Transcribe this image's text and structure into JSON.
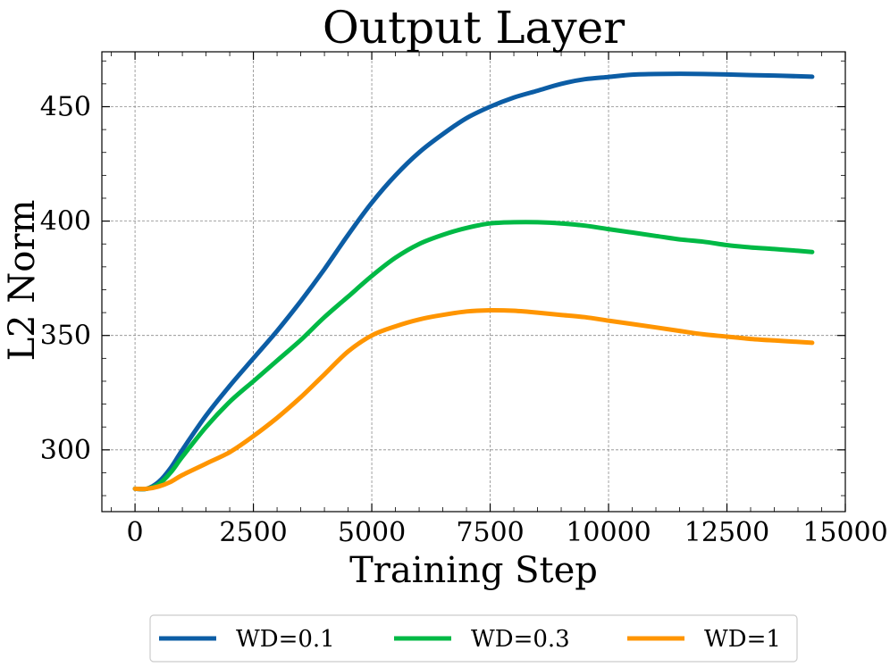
{
  "chart_data": {
    "type": "line",
    "title": "Output Layer",
    "xlabel": "Training Step",
    "ylabel": "L2 Norm",
    "xlim": [
      -700,
      15000
    ],
    "ylim": [
      273,
      474
    ],
    "xticks": [
      0,
      2500,
      5000,
      7500,
      10000,
      12500,
      15000
    ],
    "yticks": [
      300,
      350,
      400,
      450
    ],
    "xtick_labels": [
      "0",
      "2500",
      "5000",
      "7500",
      "10000",
      "12500",
      "15000"
    ],
    "ytick_labels": [
      "300",
      "350",
      "400",
      "450"
    ],
    "grid": true,
    "legend_position": "bottom-center (outside)",
    "series": [
      {
        "name": "WD=0.1",
        "color": "#0C5DA5",
        "x": [
          0,
          250,
          500,
          750,
          1000,
          1500,
          2000,
          2500,
          3000,
          3500,
          4000,
          4500,
          5000,
          5500,
          6000,
          6500,
          7000,
          7500,
          8000,
          8500,
          9000,
          9500,
          10000,
          10500,
          11000,
          11500,
          12000,
          12500,
          13000,
          13500,
          14000,
          14300
        ],
        "y": [
          283,
          283,
          286,
          292,
          300,
          315,
          328,
          340,
          352,
          365,
          379,
          394,
          408,
          420,
          430,
          438,
          445,
          450,
          454,
          457,
          460,
          462,
          463,
          464,
          464.3,
          464.4,
          464.3,
          464.1,
          463.8,
          463.6,
          463.3,
          463.1
        ]
      },
      {
        "name": "WD=0.3",
        "color": "#00B945",
        "x": [
          0,
          250,
          500,
          750,
          1000,
          1500,
          2000,
          2500,
          3000,
          3500,
          4000,
          4500,
          5000,
          5500,
          6000,
          6500,
          7000,
          7500,
          8000,
          8500,
          9000,
          9500,
          10000,
          10500,
          11000,
          11500,
          12000,
          12500,
          13000,
          13500,
          14000,
          14300
        ],
        "y": [
          283,
          283,
          285,
          290,
          297,
          310,
          321,
          330,
          339,
          348,
          358,
          367,
          376,
          384,
          390,
          394,
          397,
          399,
          399.5,
          399.5,
          399,
          398,
          396.5,
          395,
          393.5,
          392,
          391,
          389.5,
          388.5,
          387.8,
          387,
          386.5
        ]
      },
      {
        "name": "WD=1",
        "color": "#FF9500",
        "x": [
          0,
          250,
          500,
          750,
          1000,
          1500,
          2000,
          2500,
          3000,
          3500,
          4000,
          4500,
          5000,
          5500,
          6000,
          6500,
          7000,
          7500,
          8000,
          8500,
          9000,
          9500,
          10000,
          10500,
          11000,
          11500,
          12000,
          12500,
          13000,
          13500,
          14000,
          14300
        ],
        "y": [
          283,
          283,
          284,
          286,
          289,
          294,
          299,
          306,
          314,
          323,
          333,
          343,
          350,
          354,
          357,
          359,
          360.5,
          361,
          360.8,
          360,
          359,
          358,
          356.5,
          355,
          353.5,
          352,
          350.5,
          349.5,
          348.5,
          347.8,
          347.2,
          346.8
        ]
      }
    ]
  }
}
